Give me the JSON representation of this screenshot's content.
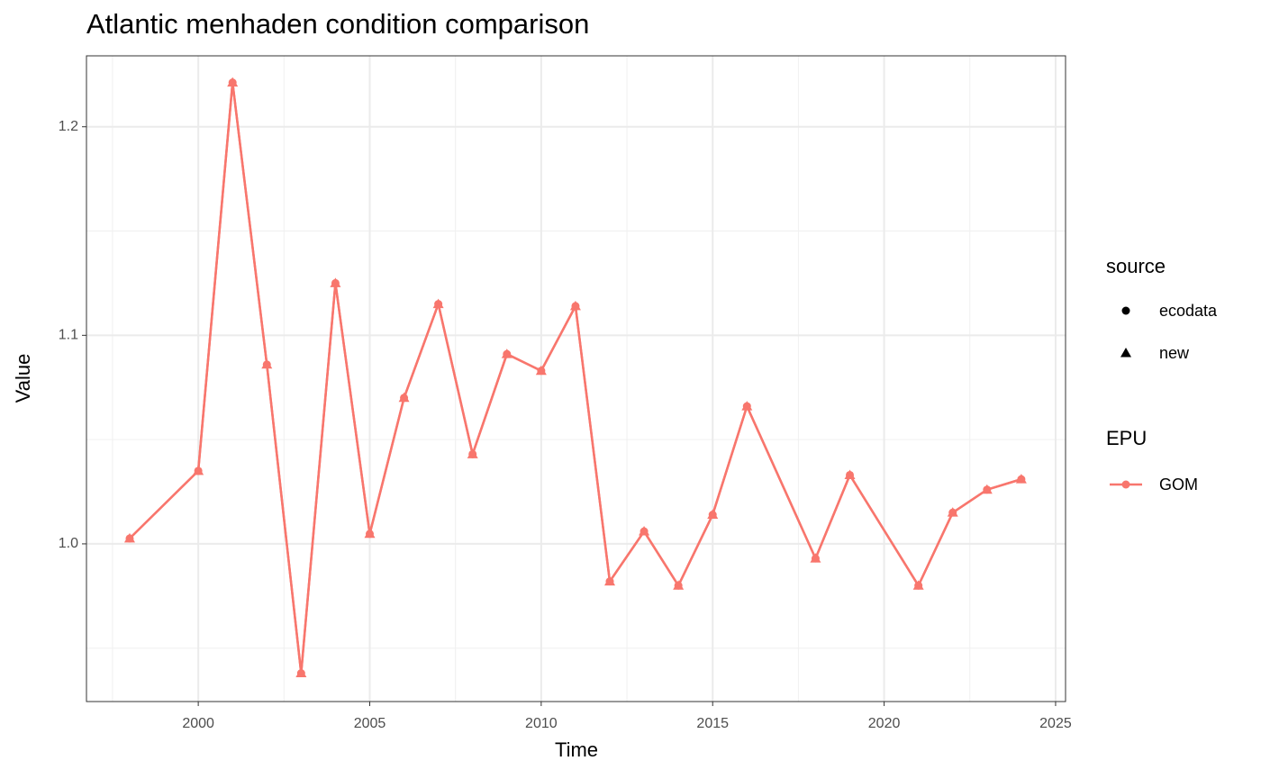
{
  "chart_data": {
    "type": "line",
    "title": "Atlantic menhaden condition comparison",
    "x_label": "Time",
    "y_label": "Value",
    "x": [
      1998,
      2000,
      2001,
      2002,
      2003,
      2004,
      2005,
      2006,
      2007,
      2008,
      2009,
      2010,
      2011,
      2012,
      2013,
      2014,
      2015,
      2016,
      2018,
      2019,
      2021,
      2022,
      2023,
      2024
    ],
    "series": [
      {
        "name": "ecodata",
        "shape": "circle",
        "values": [
          1.0026,
          1.035,
          1.2212,
          1.086,
          0.938,
          1.125,
          1.0048,
          1.07,
          1.115,
          1.043,
          1.091,
          1.083,
          1.114,
          0.982,
          1.006,
          0.98,
          1.014,
          1.066,
          0.993,
          1.033,
          0.98,
          1.015,
          1.026,
          1.031
        ]
      },
      {
        "name": "new",
        "shape": "triangle",
        "values": [
          1.0026,
          1.035,
          1.2212,
          1.086,
          0.938,
          1.125,
          1.0048,
          1.07,
          1.115,
          1.043,
          1.091,
          1.083,
          1.114,
          0.982,
          1.006,
          0.98,
          1.014,
          1.066,
          0.993,
          1.033,
          0.98,
          1.015,
          1.026,
          1.031
        ]
      }
    ],
    "color": "#f8766d",
    "shape_legend_title": "source",
    "color_legend": {
      "title": "EPU",
      "labels": [
        "GOM"
      ]
    },
    "xlim": [
      1996.74,
      2025.29
    ],
    "xticks": [
      2000,
      2005,
      2010,
      2015,
      2020,
      2025
    ],
    "ylim": [
      0.9244,
      1.234
    ],
    "yticks": [
      {
        "value": 1,
        "label": "1.0"
      },
      1.1,
      1.2
    ],
    "grid": true
  }
}
